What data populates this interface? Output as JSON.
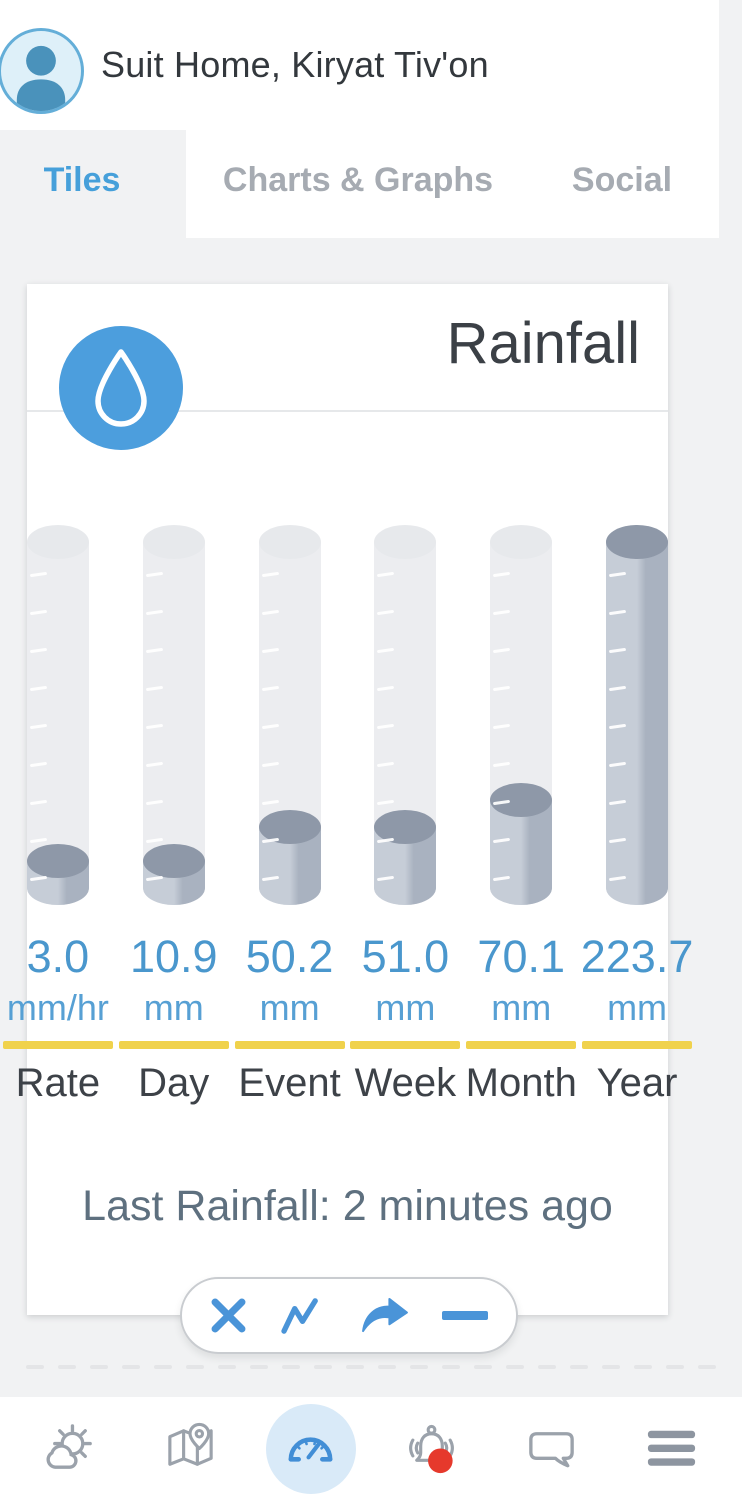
{
  "header": {
    "title": "Suit Home, Kiryat Tiv'on"
  },
  "tabs": [
    {
      "label": "Tiles",
      "active": true
    },
    {
      "label": "Charts & Graphs",
      "active": false
    },
    {
      "label": "Social",
      "active": false
    }
  ],
  "tile": {
    "title": "Rainfall",
    "icon": "rain-drop-icon",
    "last_event_text": "Last Rainfall: 2 minutes ago"
  },
  "chart_data": {
    "type": "bar",
    "title": "Rainfall",
    "categories": [
      "Rate",
      "Day",
      "Event",
      "Week",
      "Month",
      "Year"
    ],
    "values": [
      3.0,
      10.9,
      50.2,
      51.0,
      70.1,
      223.7
    ],
    "display_values": [
      "3.0",
      "10.9",
      "50.2",
      "51.0",
      "70.1",
      "223.7"
    ],
    "units": [
      "mm/hr",
      "mm",
      "mm",
      "mm",
      "mm",
      "mm"
    ],
    "fill_fractions": [
      0.12,
      0.12,
      0.215,
      0.215,
      0.29,
      1.0
    ],
    "layout": {
      "gauge_style": "vertical-cylinder",
      "ticks_per_gauge": 9,
      "legend": "none",
      "grid": false
    }
  },
  "actions": [
    {
      "name": "close",
      "icon": "close-icon"
    },
    {
      "name": "graph",
      "icon": "line-chart-icon"
    },
    {
      "name": "share",
      "icon": "share-icon"
    },
    {
      "name": "collapse",
      "icon": "minus-icon"
    }
  ],
  "page_indicator": {
    "dash_count": 22
  },
  "bottom_nav": [
    {
      "name": "weather",
      "icon": "weather-icon",
      "active": false
    },
    {
      "name": "map",
      "icon": "map-icon",
      "active": false
    },
    {
      "name": "dashboard",
      "icon": "gauge-icon",
      "active": true
    },
    {
      "name": "alerts",
      "icon": "bell-icon",
      "active": false,
      "badge": true
    },
    {
      "name": "messages",
      "icon": "chat-icon",
      "active": false
    },
    {
      "name": "menu",
      "icon": "hamburger-icon",
      "active": false
    }
  ],
  "colors": {
    "accent_blue": "#4a94d8",
    "tab_active_blue": "#46a0da",
    "value_blue": "#4a97cd",
    "underline_yellow": "#f0d24c",
    "gauge_fill": "#aab3c1",
    "gauge_track": "#ecedf0",
    "badge_red": "#e6392c",
    "page_background": "#f1f2f3"
  }
}
